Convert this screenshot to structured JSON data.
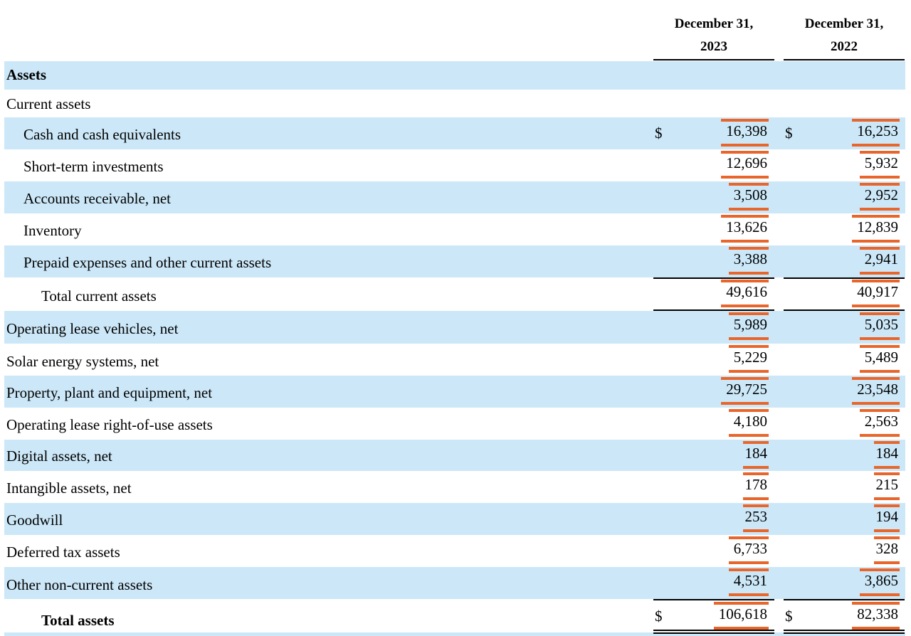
{
  "columns": [
    {
      "line1": "December 31,",
      "line2": "2023"
    },
    {
      "line1": "December 31,",
      "line2": "2022"
    }
  ],
  "sections": {
    "assets_heading": "Assets",
    "current_assets_heading": "Current assets"
  },
  "rows": [
    {
      "label": "Cash and cash equivalents",
      "v2023": "16,398",
      "v2022": "16,253",
      "currency": "$"
    },
    {
      "label": "Short-term investments",
      "v2023": "12,696",
      "v2022": "5,932"
    },
    {
      "label": "Accounts receivable, net",
      "v2023": "3,508",
      "v2022": "2,952"
    },
    {
      "label": "Inventory",
      "v2023": "13,626",
      "v2022": "12,839"
    },
    {
      "label": "Prepaid expenses and other current assets",
      "v2023": "3,388",
      "v2022": "2,941"
    },
    {
      "label": "Total current assets",
      "v2023": "49,616",
      "v2022": "40,917"
    },
    {
      "label": "Operating lease vehicles, net",
      "v2023": "5,989",
      "v2022": "5,035"
    },
    {
      "label": "Solar energy systems, net",
      "v2023": "5,229",
      "v2022": "5,489"
    },
    {
      "label": "Property, plant and equipment, net",
      "v2023": "29,725",
      "v2022": "23,548"
    },
    {
      "label": "Operating lease right-of-use assets",
      "v2023": "4,180",
      "v2022": "2,563"
    },
    {
      "label": "Digital assets, net",
      "v2023": "184",
      "v2022": "184"
    },
    {
      "label": "Intangible assets, net",
      "v2023": "178",
      "v2022": "215"
    },
    {
      "label": "Goodwill",
      "v2023": "253",
      "v2022": "194"
    },
    {
      "label": "Deferred tax assets",
      "v2023": "6,733",
      "v2022": "328"
    },
    {
      "label": "Other non-current assets",
      "v2023": "4,531",
      "v2022": "3,865"
    },
    {
      "label": "Total assets",
      "v2023": "106,618",
      "v2022": "82,338",
      "currency": "$"
    }
  ],
  "highlight_color": "#e8662c",
  "shade_color": "#cce8f8"
}
